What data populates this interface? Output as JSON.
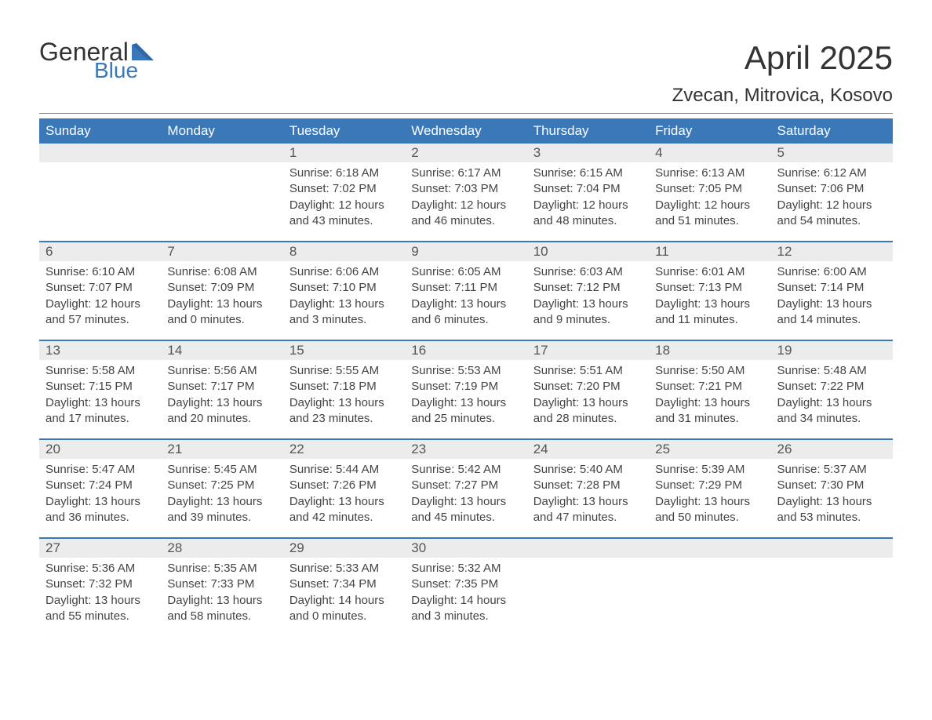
{
  "brand": {
    "word1": "General",
    "word2": "Blue",
    "flag_color": "#3b78b8",
    "text1_color": "#333333",
    "text2_color": "#3b78b8"
  },
  "title": "April 2025",
  "location": "Zvecan, Mitrovica, Kosovo",
  "colors": {
    "header_bg": "#3b78b8",
    "header_text": "#ffffff",
    "daynum_bg": "#ececec",
    "daynum_text": "#555555",
    "body_text": "#444444",
    "divider": "#808080",
    "week_border": "#3b78b8",
    "page_bg": "#ffffff"
  },
  "typography": {
    "title_fontsize": 42,
    "location_fontsize": 24,
    "dayheader_fontsize": 17,
    "daynum_fontsize": 17,
    "body_fontsize": 15
  },
  "day_names": [
    "Sunday",
    "Monday",
    "Tuesday",
    "Wednesday",
    "Thursday",
    "Friday",
    "Saturday"
  ],
  "weeks": [
    [
      {
        "num": "",
        "sunrise": "",
        "sunset": "",
        "daylight": ""
      },
      {
        "num": "",
        "sunrise": "",
        "sunset": "",
        "daylight": ""
      },
      {
        "num": "1",
        "sunrise": "Sunrise: 6:18 AM",
        "sunset": "Sunset: 7:02 PM",
        "daylight": "Daylight: 12 hours and 43 minutes."
      },
      {
        "num": "2",
        "sunrise": "Sunrise: 6:17 AM",
        "sunset": "Sunset: 7:03 PM",
        "daylight": "Daylight: 12 hours and 46 minutes."
      },
      {
        "num": "3",
        "sunrise": "Sunrise: 6:15 AM",
        "sunset": "Sunset: 7:04 PM",
        "daylight": "Daylight: 12 hours and 48 minutes."
      },
      {
        "num": "4",
        "sunrise": "Sunrise: 6:13 AM",
        "sunset": "Sunset: 7:05 PM",
        "daylight": "Daylight: 12 hours and 51 minutes."
      },
      {
        "num": "5",
        "sunrise": "Sunrise: 6:12 AM",
        "sunset": "Sunset: 7:06 PM",
        "daylight": "Daylight: 12 hours and 54 minutes."
      }
    ],
    [
      {
        "num": "6",
        "sunrise": "Sunrise: 6:10 AM",
        "sunset": "Sunset: 7:07 PM",
        "daylight": "Daylight: 12 hours and 57 minutes."
      },
      {
        "num": "7",
        "sunrise": "Sunrise: 6:08 AM",
        "sunset": "Sunset: 7:09 PM",
        "daylight": "Daylight: 13 hours and 0 minutes."
      },
      {
        "num": "8",
        "sunrise": "Sunrise: 6:06 AM",
        "sunset": "Sunset: 7:10 PM",
        "daylight": "Daylight: 13 hours and 3 minutes."
      },
      {
        "num": "9",
        "sunrise": "Sunrise: 6:05 AM",
        "sunset": "Sunset: 7:11 PM",
        "daylight": "Daylight: 13 hours and 6 minutes."
      },
      {
        "num": "10",
        "sunrise": "Sunrise: 6:03 AM",
        "sunset": "Sunset: 7:12 PM",
        "daylight": "Daylight: 13 hours and 9 minutes."
      },
      {
        "num": "11",
        "sunrise": "Sunrise: 6:01 AM",
        "sunset": "Sunset: 7:13 PM",
        "daylight": "Daylight: 13 hours and 11 minutes."
      },
      {
        "num": "12",
        "sunrise": "Sunrise: 6:00 AM",
        "sunset": "Sunset: 7:14 PM",
        "daylight": "Daylight: 13 hours and 14 minutes."
      }
    ],
    [
      {
        "num": "13",
        "sunrise": "Sunrise: 5:58 AM",
        "sunset": "Sunset: 7:15 PM",
        "daylight": "Daylight: 13 hours and 17 minutes."
      },
      {
        "num": "14",
        "sunrise": "Sunrise: 5:56 AM",
        "sunset": "Sunset: 7:17 PM",
        "daylight": "Daylight: 13 hours and 20 minutes."
      },
      {
        "num": "15",
        "sunrise": "Sunrise: 5:55 AM",
        "sunset": "Sunset: 7:18 PM",
        "daylight": "Daylight: 13 hours and 23 minutes."
      },
      {
        "num": "16",
        "sunrise": "Sunrise: 5:53 AM",
        "sunset": "Sunset: 7:19 PM",
        "daylight": "Daylight: 13 hours and 25 minutes."
      },
      {
        "num": "17",
        "sunrise": "Sunrise: 5:51 AM",
        "sunset": "Sunset: 7:20 PM",
        "daylight": "Daylight: 13 hours and 28 minutes."
      },
      {
        "num": "18",
        "sunrise": "Sunrise: 5:50 AM",
        "sunset": "Sunset: 7:21 PM",
        "daylight": "Daylight: 13 hours and 31 minutes."
      },
      {
        "num": "19",
        "sunrise": "Sunrise: 5:48 AM",
        "sunset": "Sunset: 7:22 PM",
        "daylight": "Daylight: 13 hours and 34 minutes."
      }
    ],
    [
      {
        "num": "20",
        "sunrise": "Sunrise: 5:47 AM",
        "sunset": "Sunset: 7:24 PM",
        "daylight": "Daylight: 13 hours and 36 minutes."
      },
      {
        "num": "21",
        "sunrise": "Sunrise: 5:45 AM",
        "sunset": "Sunset: 7:25 PM",
        "daylight": "Daylight: 13 hours and 39 minutes."
      },
      {
        "num": "22",
        "sunrise": "Sunrise: 5:44 AM",
        "sunset": "Sunset: 7:26 PM",
        "daylight": "Daylight: 13 hours and 42 minutes."
      },
      {
        "num": "23",
        "sunrise": "Sunrise: 5:42 AM",
        "sunset": "Sunset: 7:27 PM",
        "daylight": "Daylight: 13 hours and 45 minutes."
      },
      {
        "num": "24",
        "sunrise": "Sunrise: 5:40 AM",
        "sunset": "Sunset: 7:28 PM",
        "daylight": "Daylight: 13 hours and 47 minutes."
      },
      {
        "num": "25",
        "sunrise": "Sunrise: 5:39 AM",
        "sunset": "Sunset: 7:29 PM",
        "daylight": "Daylight: 13 hours and 50 minutes."
      },
      {
        "num": "26",
        "sunrise": "Sunrise: 5:37 AM",
        "sunset": "Sunset: 7:30 PM",
        "daylight": "Daylight: 13 hours and 53 minutes."
      }
    ],
    [
      {
        "num": "27",
        "sunrise": "Sunrise: 5:36 AM",
        "sunset": "Sunset: 7:32 PM",
        "daylight": "Daylight: 13 hours and 55 minutes."
      },
      {
        "num": "28",
        "sunrise": "Sunrise: 5:35 AM",
        "sunset": "Sunset: 7:33 PM",
        "daylight": "Daylight: 13 hours and 58 minutes."
      },
      {
        "num": "29",
        "sunrise": "Sunrise: 5:33 AM",
        "sunset": "Sunset: 7:34 PM",
        "daylight": "Daylight: 14 hours and 0 minutes."
      },
      {
        "num": "30",
        "sunrise": "Sunrise: 5:32 AM",
        "sunset": "Sunset: 7:35 PM",
        "daylight": "Daylight: 14 hours and 3 minutes."
      },
      {
        "num": "",
        "sunrise": "",
        "sunset": "",
        "daylight": ""
      },
      {
        "num": "",
        "sunrise": "",
        "sunset": "",
        "daylight": ""
      },
      {
        "num": "",
        "sunrise": "",
        "sunset": "",
        "daylight": ""
      }
    ]
  ]
}
